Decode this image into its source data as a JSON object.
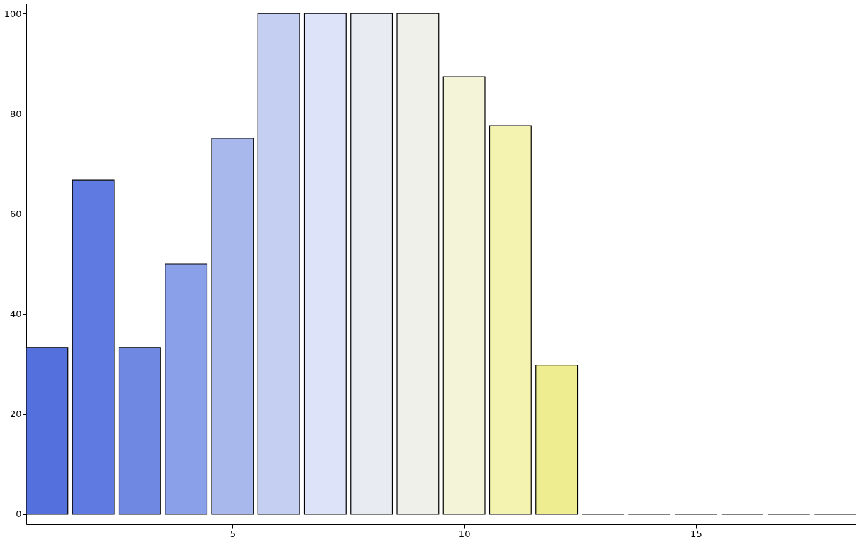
{
  "chart_data": {
    "type": "bar",
    "x": [
      1,
      2,
      3,
      4,
      5,
      6,
      7,
      8,
      9,
      10,
      11,
      12,
      13,
      14,
      15,
      16,
      17,
      18
    ],
    "values": [
      33.3,
      66.7,
      33.3,
      50,
      75.1,
      100,
      100,
      100,
      100,
      87.4,
      77.6,
      29.8,
      0,
      0,
      0,
      0,
      0,
      0
    ],
    "colors": [
      "#5470dc",
      "#5f7ae0",
      "#6f88e2",
      "#8aa0e8",
      "#a8b8ec",
      "#c4cff2",
      "#dde3f8",
      "#e8ebf2",
      "#f0f0ea",
      "#f4f4d8",
      "#f4f4b0",
      "#eeee90",
      "#000000",
      "#000000",
      "#000000",
      "#000000",
      "#000000",
      "#000000"
    ],
    "xlim": [
      0.55,
      18.45
    ],
    "xticks": [
      5,
      10,
      15
    ],
    "ylim": [
      -2,
      102
    ],
    "yticks": [
      0,
      20,
      40,
      60,
      80,
      100
    ],
    "grid": false
  }
}
